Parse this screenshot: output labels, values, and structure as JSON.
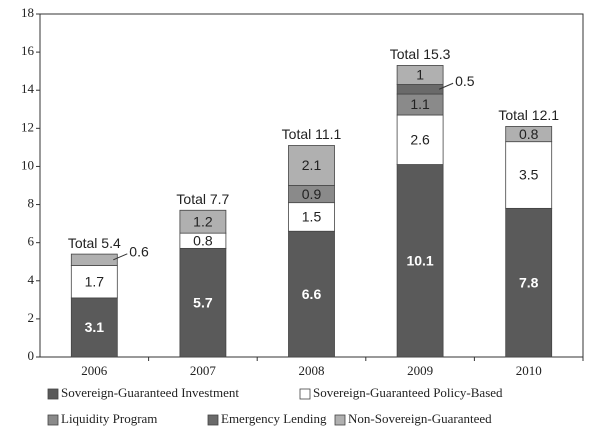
{
  "chart_data": {
    "type": "bar",
    "stacked": true,
    "categories": [
      "2006",
      "2007",
      "2008",
      "2009",
      "2010"
    ],
    "series": [
      {
        "name": "Sovereign-Guaranteed Investment",
        "color": "#5a5a5a",
        "values": [
          3.1,
          5.7,
          6.6,
          10.1,
          7.8
        ]
      },
      {
        "name": "Sovereign-Guaranteed Policy-Based",
        "color": "#ffffff",
        "values": [
          1.7,
          0.8,
          1.5,
          2.6,
          3.5
        ]
      },
      {
        "name": "Liquidity Program",
        "color": "#8a8a8a",
        "values": [
          null,
          null,
          0.9,
          1.1,
          null
        ]
      },
      {
        "name": "Emergency Lending",
        "color": "#6a6a6a",
        "values": [
          null,
          null,
          null,
          0.5,
          null
        ]
      },
      {
        "name": "Non-Sovereign-Guaranteed",
        "color": "#b0b0b0",
        "values": [
          0.6,
          1.2,
          2.1,
          1.0,
          0.8
        ]
      }
    ],
    "annotations": [
      "Total 5.4",
      "Total 7.7",
      "Total 11.1",
      "Total 15.3",
      "Total 12.1"
    ],
    "totals": [
      5.4,
      7.7,
      11.1,
      15.3,
      12.1
    ],
    "ylim": [
      0,
      18
    ],
    "yticks": [
      0,
      2,
      4,
      6,
      8,
      10,
      12,
      14,
      16,
      18
    ],
    "grid": false
  }
}
